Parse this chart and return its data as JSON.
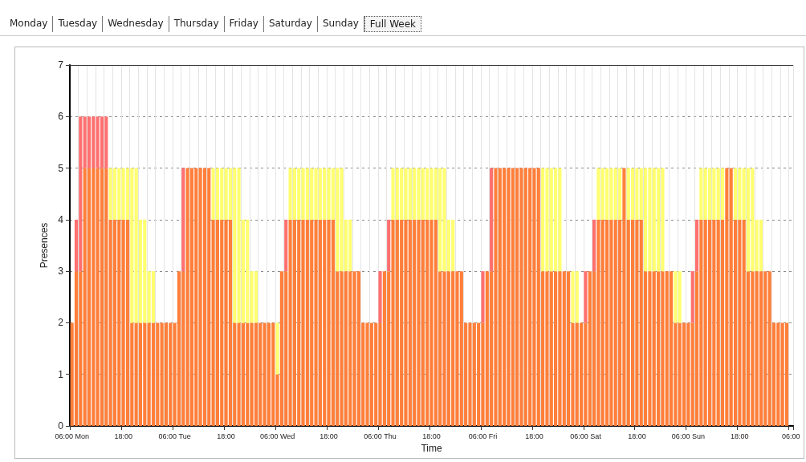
{
  "chart_data": {
    "type": "bar",
    "stacked": true,
    "xlabel": "Time",
    "ylabel": "Presences",
    "annotations": [
      "Monday",
      "Tuesday",
      "Wednesday",
      "Thursday",
      "Friday",
      "Saturday",
      "Sunday",
      "Full Week"
    ],
    "categories": [
      "06:00 Mon",
      null,
      null,
      null,
      null,
      null,
      null,
      null,
      null,
      null,
      null,
      null,
      "18:00",
      null,
      null,
      null,
      null,
      null,
      null,
      null,
      null,
      null,
      null,
      null,
      "06:00 Tue",
      null,
      null,
      null,
      null,
      null,
      null,
      null,
      null,
      null,
      null,
      null,
      "18:00",
      null,
      null,
      null,
      null,
      null,
      null,
      null,
      null,
      null,
      null,
      null,
      "06:00 Wed",
      null,
      null,
      null,
      null,
      null,
      null,
      null,
      null,
      null,
      null,
      null,
      "18:00",
      null,
      null,
      null,
      null,
      null,
      null,
      null,
      null,
      null,
      null,
      null,
      "06:00 Thu",
      null,
      null,
      null,
      null,
      null,
      null,
      null,
      null,
      null,
      null,
      null,
      "18:00",
      null,
      null,
      null,
      null,
      null,
      null,
      null,
      null,
      null,
      null,
      null,
      "06:00 Fri",
      null,
      null,
      null,
      null,
      null,
      null,
      null,
      null,
      null,
      null,
      null,
      "18:00",
      null,
      null,
      null,
      null,
      null,
      null,
      null,
      null,
      null,
      null,
      null,
      "06:00 Sat",
      null,
      null,
      null,
      null,
      null,
      null,
      null,
      null,
      null,
      null,
      null,
      "18:00",
      null,
      null,
      null,
      null,
      null,
      null,
      null,
      null,
      null,
      null,
      null,
      "06:00 Sun",
      null,
      null,
      null,
      null,
      null,
      null,
      null,
      null,
      null,
      null,
      null,
      "18:00",
      null,
      null,
      null,
      null,
      null,
      null,
      null,
      null,
      null,
      null,
      null,
      "06:00"
    ],
    "ylim": [
      0,
      7
    ],
    "yticks": [
      0,
      1,
      2,
      3,
      4,
      5,
      6,
      7
    ],
    "grid": true,
    "series": [
      {
        "color": "#ff7f3a",
        "values": [
          2,
          3,
          3,
          5,
          5,
          5,
          5,
          5,
          5,
          4,
          4,
          4,
          4,
          4,
          2,
          2,
          2,
          2,
          2,
          2,
          2,
          2,
          2,
          2,
          2,
          3,
          3,
          5,
          5,
          5,
          5,
          5,
          5,
          4,
          4,
          4,
          4,
          4,
          2,
          2,
          2,
          2,
          2,
          2,
          2,
          2,
          2,
          2,
          1,
          3,
          3,
          4,
          4,
          4,
          4,
          4,
          4,
          4,
          4,
          4,
          4,
          4,
          3,
          3,
          3,
          3,
          3,
          3,
          2,
          2,
          2,
          2,
          2,
          3,
          3,
          4,
          4,
          4,
          4,
          4,
          4,
          4,
          4,
          4,
          4,
          4,
          3,
          3,
          3,
          3,
          3,
          3,
          2,
          2,
          2,
          2,
          2,
          3,
          3,
          5,
          5,
          5,
          5,
          5,
          5,
          5,
          5,
          5,
          5,
          5,
          3,
          3,
          3,
          3,
          3,
          3,
          3,
          2,
          2,
          2,
          2,
          3,
          3,
          4,
          4,
          4,
          4,
          4,
          4,
          5,
          4,
          4,
          4,
          4,
          3,
          3,
          3,
          3,
          3,
          3,
          3,
          2,
          2,
          2,
          2,
          2,
          3,
          4,
          4,
          4,
          4,
          4,
          4,
          5,
          5,
          4,
          4,
          4,
          3,
          3,
          3,
          3,
          3,
          3,
          2,
          2,
          2,
          2,
          null
        ]
      },
      {
        "color": "#ff7070",
        "values": [
          null,
          1,
          3,
          1,
          1,
          1,
          1,
          1,
          1,
          null,
          null,
          null,
          null,
          null,
          null,
          null,
          null,
          null,
          null,
          null,
          null,
          null,
          null,
          null,
          null,
          null,
          2,
          null,
          null,
          null,
          null,
          null,
          null,
          null,
          null,
          null,
          null,
          null,
          null,
          null,
          null,
          null,
          null,
          null,
          null,
          null,
          null,
          null,
          null,
          null,
          1,
          null,
          null,
          null,
          null,
          null,
          null,
          null,
          null,
          null,
          null,
          null,
          null,
          null,
          null,
          null,
          null,
          null,
          null,
          null,
          null,
          null,
          1,
          null,
          1,
          null,
          null,
          null,
          null,
          null,
          null,
          null,
          null,
          null,
          null,
          null,
          null,
          null,
          null,
          null,
          null,
          null,
          null,
          null,
          null,
          null,
          1,
          null,
          2,
          null,
          null,
          null,
          null,
          null,
          null,
          null,
          null,
          null,
          null,
          null,
          null,
          null,
          null,
          null,
          null,
          null,
          null,
          null,
          null,
          null,
          1,
          null,
          1,
          null,
          null,
          null,
          null,
          null,
          null,
          null,
          null,
          null,
          null,
          null,
          null,
          null,
          null,
          null,
          null,
          null,
          null,
          null,
          null,
          null,
          null,
          1,
          1,
          null,
          null,
          null,
          null,
          null,
          null,
          null,
          null,
          null,
          null,
          null,
          null,
          null,
          null,
          null,
          null,
          null,
          null,
          null,
          null,
          null,
          null
        ]
      },
      {
        "color": "#ffff70",
        "values": [
          null,
          null,
          null,
          null,
          null,
          null,
          null,
          null,
          null,
          1,
          1,
          1,
          1,
          1,
          3,
          3,
          2,
          2,
          1,
          1,
          null,
          null,
          null,
          null,
          null,
          null,
          null,
          null,
          null,
          null,
          null,
          null,
          null,
          1,
          1,
          1,
          1,
          1,
          3,
          3,
          2,
          2,
          1,
          1,
          null,
          null,
          null,
          null,
          1,
          null,
          null,
          1,
          1,
          1,
          1,
          1,
          1,
          1,
          1,
          1,
          1,
          1,
          2,
          2,
          1,
          1,
          null,
          null,
          null,
          null,
          null,
          null,
          null,
          null,
          null,
          1,
          1,
          1,
          1,
          1,
          1,
          1,
          1,
          1,
          1,
          1,
          2,
          2,
          1,
          1,
          null,
          null,
          null,
          null,
          null,
          null,
          null,
          null,
          null,
          null,
          null,
          null,
          null,
          null,
          null,
          null,
          null,
          null,
          null,
          null,
          2,
          2,
          2,
          2,
          2,
          null,
          null,
          1,
          1,
          null,
          null,
          null,
          null,
          1,
          1,
          1,
          1,
          1,
          1,
          null,
          1,
          1,
          1,
          1,
          2,
          2,
          2,
          2,
          2,
          null,
          null,
          1,
          1,
          null,
          null,
          null,
          null,
          1,
          1,
          1,
          1,
          1,
          1,
          null,
          null,
          1,
          1,
          1,
          2,
          2,
          1,
          1,
          null,
          null,
          null,
          null,
          null,
          null,
          null
        ]
      }
    ]
  }
}
